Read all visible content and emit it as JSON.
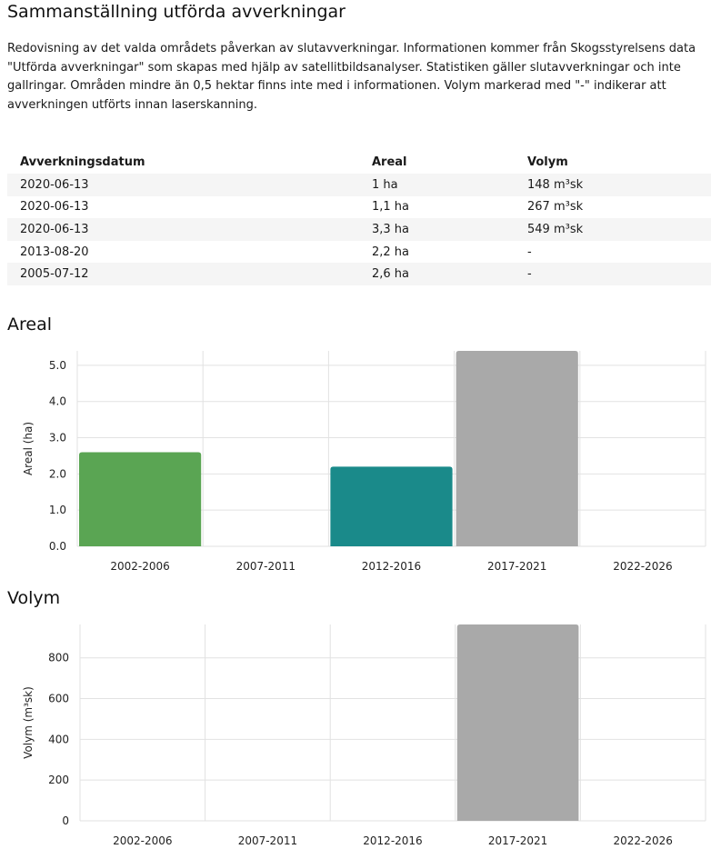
{
  "page": {
    "title": "Sammanställning utförda avverkningar",
    "description": "Redovisning av det valda områdets påverkan av slutavverkningar. Informationen kommer från Skogsstyrelsens data \"Utförda avverkningar\" som skapas med hjälp av satellitbildsanalyser. Statistiken gäller slutavverkningar och inte gallringar. Områden mindre än 0,5 hektar finns inte med i informationen. Volym markerad med \"-\" indikerar att avverkningen utförts innan laserskanning."
  },
  "table": {
    "headers": [
      "Avverkningsdatum",
      "Areal",
      "Volym"
    ],
    "rows": [
      [
        "2020-06-13",
        "1 ha",
        "148 m³sk"
      ],
      [
        "2020-06-13",
        "1,1 ha",
        "267 m³sk"
      ],
      [
        "2020-06-13",
        "3,3 ha",
        "549 m³sk"
      ],
      [
        "2013-08-20",
        "2,2 ha",
        "-"
      ],
      [
        "2005-07-12",
        "2,6 ha",
        "-"
      ]
    ]
  },
  "sections": {
    "areal_title": "Areal",
    "volym_title": "Volym"
  },
  "colors": {
    "green": "#5aa553",
    "teal": "#1a8a8a",
    "gray": "#a9a9a9",
    "grid": "#e2e2e2"
  },
  "chart_data": [
    {
      "type": "bar",
      "title": "Areal",
      "categories": [
        "2002-2006",
        "2007-2011",
        "2012-2016",
        "2017-2021",
        "2022-2026"
      ],
      "values": [
        2.6,
        0,
        2.2,
        5.4,
        0
      ],
      "bar_colors": [
        "#5aa553",
        "#5aa553",
        "#1a8a8a",
        "#a9a9a9",
        "#a9a9a9"
      ],
      "ylabel": "Areal (ha)",
      "yticks": [
        "0.0",
        "1.0",
        "2.0",
        "3.0",
        "4.0",
        "5.0"
      ],
      "ylim": [
        0,
        5.4
      ],
      "grid": true
    },
    {
      "type": "bar",
      "title": "Volym",
      "categories": [
        "2002-2006",
        "2007-2011",
        "2012-2016",
        "2017-2021",
        "2022-2026"
      ],
      "values": [
        0,
        0,
        0,
        964,
        0
      ],
      "bar_colors": [
        "#a9a9a9",
        "#a9a9a9",
        "#a9a9a9",
        "#a9a9a9",
        "#a9a9a9"
      ],
      "ylabel": "Volym (m³sk)",
      "yticks": [
        "0",
        "200",
        "400",
        "600",
        "800"
      ],
      "ylim": [
        0,
        964
      ],
      "grid": true
    }
  ]
}
